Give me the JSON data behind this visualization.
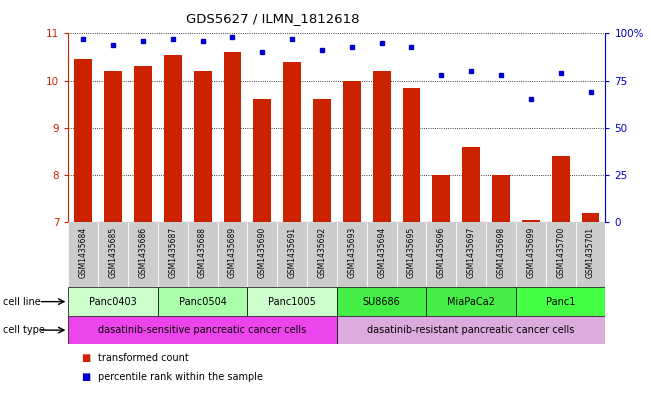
{
  "title": "GDS5627 / ILMN_1812618",
  "samples": [
    "GSM1435684",
    "GSM1435685",
    "GSM1435686",
    "GSM1435687",
    "GSM1435688",
    "GSM1435689",
    "GSM1435690",
    "GSM1435691",
    "GSM1435692",
    "GSM1435693",
    "GSM1435694",
    "GSM1435695",
    "GSM1435696",
    "GSM1435697",
    "GSM1435698",
    "GSM1435699",
    "GSM1435700",
    "GSM1435701"
  ],
  "bar_values": [
    10.45,
    10.2,
    10.3,
    10.55,
    10.2,
    10.6,
    9.6,
    10.4,
    9.6,
    10.0,
    10.2,
    9.85,
    8.0,
    8.6,
    8.0,
    7.05,
    8.4,
    7.2
  ],
  "percentile_values": [
    97,
    94,
    96,
    97,
    96,
    98,
    90,
    97,
    91,
    93,
    95,
    93,
    78,
    80,
    78,
    65,
    79,
    69
  ],
  "ylim_left": [
    7,
    11
  ],
  "ylim_right": [
    0,
    100
  ],
  "yticks_left": [
    7,
    8,
    9,
    10,
    11
  ],
  "yticks_right": [
    0,
    25,
    50,
    75,
    100
  ],
  "bar_color": "#cc2200",
  "dot_color": "#0000cc",
  "cell_lines": [
    {
      "label": "Panc0403",
      "start": 0,
      "end": 3,
      "color": "#ccffcc"
    },
    {
      "label": "Panc0504",
      "start": 3,
      "end": 6,
      "color": "#aaffaa"
    },
    {
      "label": "Panc1005",
      "start": 6,
      "end": 9,
      "color": "#ccffcc"
    },
    {
      "label": "SU8686",
      "start": 9,
      "end": 12,
      "color": "#44ee44"
    },
    {
      "label": "MiaPaCa2",
      "start": 12,
      "end": 15,
      "color": "#44ee44"
    },
    {
      "label": "Panc1",
      "start": 15,
      "end": 18,
      "color": "#44ff44"
    }
  ],
  "cell_types": [
    {
      "label": "dasatinib-sensitive pancreatic cancer cells",
      "start": 0,
      "end": 9,
      "color": "#ee44ee"
    },
    {
      "label": "dasatinib-resistant pancreatic cancer cells",
      "start": 9,
      "end": 18,
      "color": "#ddaadd"
    }
  ],
  "legend_bar_label": "transformed count",
  "legend_dot_label": "percentile rank within the sample",
  "ylabel_left_color": "#cc2200",
  "ylabel_right_color": "#0000cc",
  "background_color": "#ffffff",
  "tick_bg_color": "#cccccc",
  "n": 18
}
